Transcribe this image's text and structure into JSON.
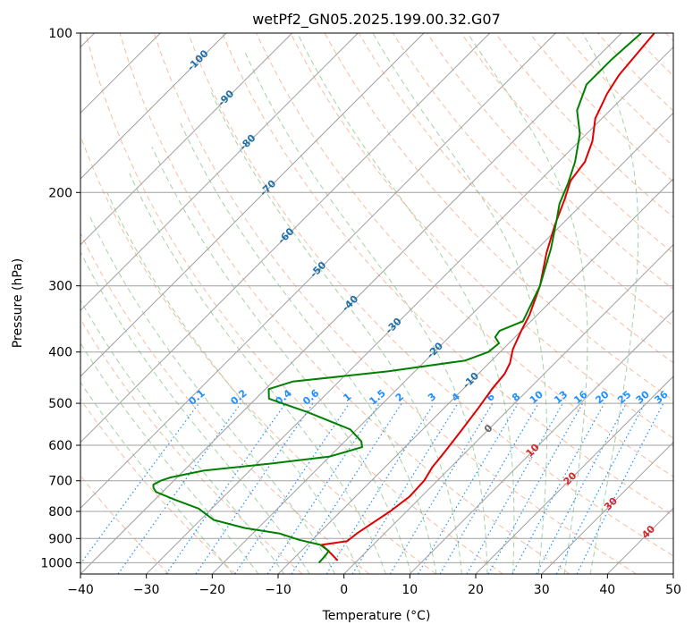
{
  "chart_data": {
    "type": "line",
    "title": "wetPf2_GN05.2025.199.00.32.G07",
    "xlabel": "Temperature (°C)",
    "ylabel": "Pressure (hPa)",
    "xlim": [
      -40,
      50
    ],
    "ylim": [
      1050,
      100
    ],
    "y_scale": "log",
    "grid": true,
    "x_ticks": [
      -40,
      -30,
      -20,
      -10,
      0,
      10,
      20,
      30,
      40,
      50
    ],
    "y_ticks": [
      100,
      200,
      300,
      400,
      500,
      600,
      700,
      800,
      900,
      1000
    ],
    "colors": {
      "temperature": "#e00000",
      "dewpoint": "#008000",
      "isotherm": "#a0a0a0",
      "dry_adiabat": "#f4a582",
      "moist_adiabat": "#7fbf7f",
      "mixing_ratio": "#1e90ff",
      "isotherm_label_cold": "#1f6fa8",
      "isotherm_label_warm": "#d62728",
      "isotherm_label_zero": "#666666"
    },
    "series": [
      {
        "name": "",
        "role": "temperature",
        "points": [
          [
            -3.0,
            990
          ],
          [
            -5.5,
            955
          ],
          [
            -7.8,
            925
          ],
          [
            -4.5,
            910
          ],
          [
            -4.2,
            880
          ],
          [
            -2.5,
            800
          ],
          [
            -1.8,
            750
          ],
          [
            -2.0,
            700
          ],
          [
            -2.8,
            660
          ],
          [
            -3.2,
            620
          ],
          [
            -4.0,
            560
          ],
          [
            -4.8,
            510
          ],
          [
            -5.6,
            470
          ],
          [
            -6.0,
            440
          ],
          [
            -6.8,
            420
          ],
          [
            -8.5,
            395
          ],
          [
            -10.0,
            365
          ],
          [
            -11.2,
            340
          ],
          [
            -14.0,
            300
          ],
          [
            -18.0,
            260
          ],
          [
            -21.0,
            230
          ],
          [
            -23.5,
            205
          ],
          [
            -25.3,
            190
          ],
          [
            -26.0,
            175
          ],
          [
            -28.0,
            160
          ],
          [
            -31.0,
            145
          ],
          [
            -33.0,
            130
          ],
          [
            -34.0,
            120
          ],
          [
            -35.0,
            100
          ]
        ]
      },
      {
        "name": "",
        "role": "dewpoint",
        "points": [
          [
            -5.5,
            1000
          ],
          [
            -5.6,
            970
          ],
          [
            -5.8,
            950
          ],
          [
            -8.0,
            925
          ],
          [
            -12.0,
            905
          ],
          [
            -16.0,
            880
          ],
          [
            -22.0,
            860
          ],
          [
            -28.0,
            830
          ],
          [
            -32.0,
            790
          ],
          [
            -37.0,
            760
          ],
          [
            -41.0,
            735
          ],
          [
            -42.0,
            722
          ],
          [
            -42.5,
            712
          ],
          [
            -42.0,
            700
          ],
          [
            -41.0,
            690
          ],
          [
            -37.0,
            670
          ],
          [
            -28.0,
            650
          ],
          [
            -20.0,
            630
          ],
          [
            -16.5,
            605
          ],
          [
            -17.5,
            590
          ],
          [
            -21.0,
            560
          ],
          [
            -30.0,
            520
          ],
          [
            -38.0,
            490
          ],
          [
            -39.5,
            470
          ],
          [
            -37.0,
            455
          ],
          [
            -24.0,
            435
          ],
          [
            -14.0,
            415
          ],
          [
            -11.8,
            400
          ],
          [
            -11.5,
            385
          ],
          [
            -13.0,
            375
          ],
          [
            -13.3,
            365
          ],
          [
            -11.2,
            350
          ],
          [
            -14.0,
            300
          ],
          [
            -18.0,
            255
          ],
          [
            -21.5,
            225
          ],
          [
            -23.5,
            210
          ],
          [
            -25.3,
            192
          ],
          [
            -27.5,
            175
          ],
          [
            -31.0,
            155
          ],
          [
            -35.0,
            140
          ],
          [
            -37.5,
            125
          ],
          [
            -37.5,
            112
          ],
          [
            -37.0,
            100
          ]
        ]
      }
    ],
    "isotherm_labels": [
      "-100",
      "-90",
      "-80",
      "-70",
      "-60",
      "-50",
      "-40",
      "-30",
      "-20",
      "-10",
      "0",
      "10",
      "20",
      "30",
      "40"
    ],
    "mixing_ratio_labels": [
      "0.1",
      "0.2",
      "0.4",
      "0.6",
      "1",
      "1.5",
      "2",
      "3",
      "4",
      "6",
      "8",
      "10",
      "13",
      "16",
      "20",
      "25",
      "30",
      "36"
    ]
  }
}
